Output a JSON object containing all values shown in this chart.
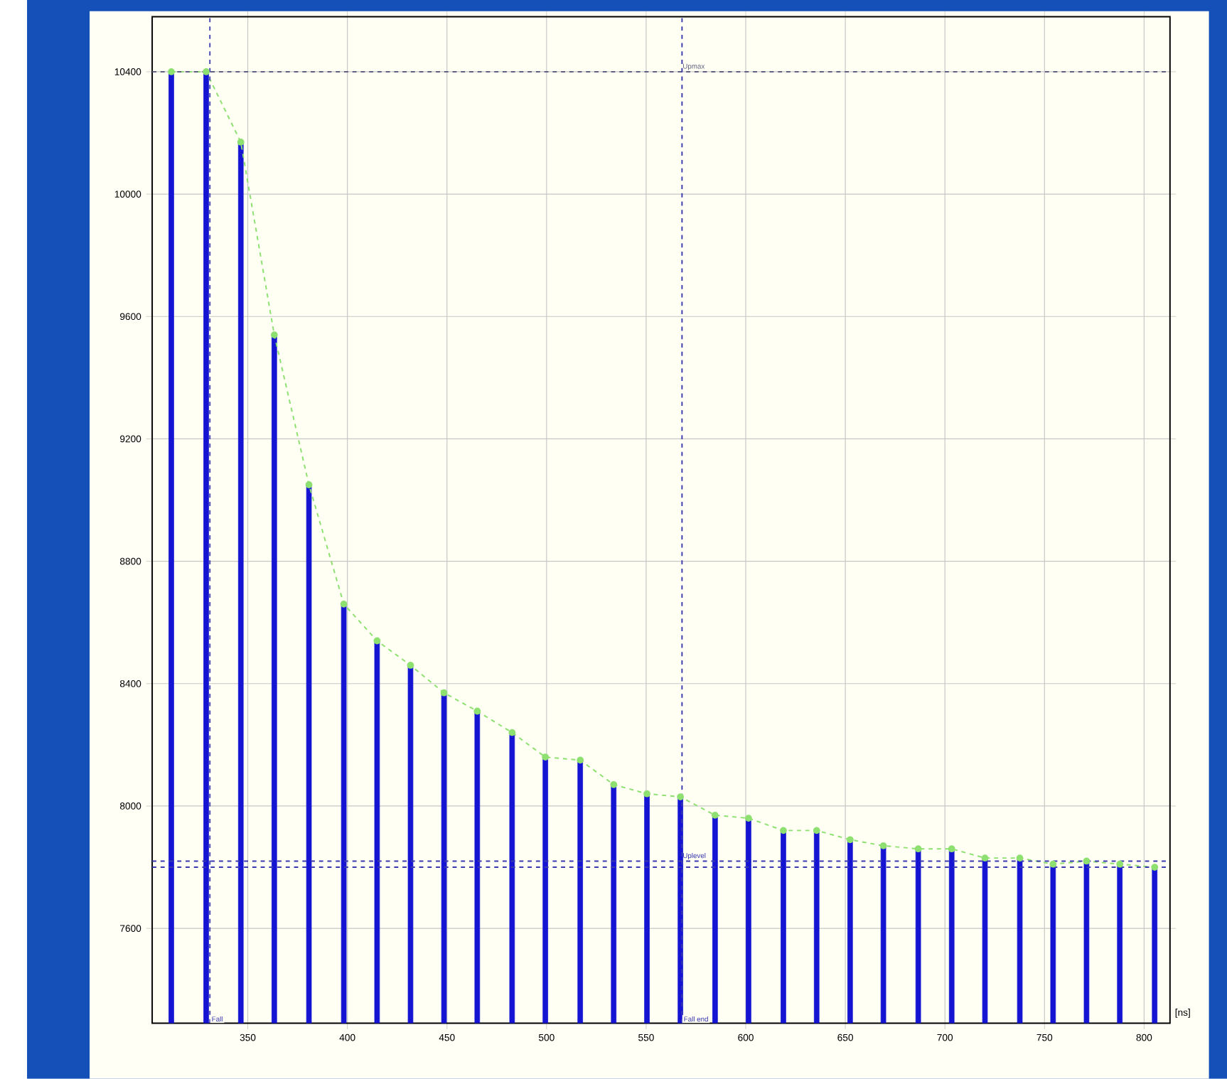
{
  "chart_data": {
    "type": "bar",
    "xlabel": "[ns]",
    "x": [
      311.6,
      329.1,
      346.5,
      363.3,
      380.7,
      398.2,
      414.9,
      431.7,
      448.5,
      465.2,
      482.7,
      499.4,
      516.9,
      533.7,
      550.4,
      567.2,
      584.6,
      601.4,
      618.9,
      635.6,
      652.4,
      669.1,
      686.6,
      703.4,
      720.1,
      737.6,
      754.3,
      771.1,
      787.8,
      805.3
    ],
    "series": [
      {
        "color": "#1414d2",
        "values": [
          10400,
          10400,
          10170,
          9540,
          9050,
          8660,
          8540,
          8460,
          8370,
          8310,
          8240,
          8160,
          8150,
          8070,
          8040,
          8030,
          7970,
          7960,
          7920,
          7920,
          7890,
          7870,
          7860,
          7860,
          7830,
          7830,
          7810,
          7820,
          7810,
          7800
        ]
      },
      {
        "type": "line",
        "color": "#8ee070",
        "marker": "circle",
        "line_style": "dashed",
        "values": [
          10400,
          10400,
          10170,
          9540,
          9050,
          8660,
          8540,
          8460,
          8370,
          8310,
          8240,
          8160,
          8150,
          8070,
          8040,
          8030,
          7970,
          7960,
          7920,
          7920,
          7890,
          7870,
          7860,
          7860,
          7830,
          7830,
          7810,
          7820,
          7810,
          7800
        ]
      }
    ],
    "xlim": [
      302,
      813
    ],
    "ylim": [
      7290,
      10580
    ],
    "xticks": [
      350,
      400,
      450,
      500,
      550,
      600,
      650,
      700,
      750,
      800
    ],
    "yticks": [
      7600,
      8000,
      8400,
      8800,
      9200,
      9600,
      10000,
      10400
    ],
    "grid": true,
    "ref_lines": [
      {
        "axis": "y",
        "value": 10400,
        "label": "Upmax",
        "color": "#606080",
        "line_style": "dashed"
      },
      {
        "axis": "y",
        "value": 7820,
        "label": "Uplevel",
        "color": "#3a3ab0",
        "line_style": "dashed"
      },
      {
        "axis": "y",
        "value": 7800,
        "color": "#3a3ab0",
        "line_style": "dashed"
      },
      {
        "axis": "x",
        "value": 331,
        "label": "Fall",
        "color": "#3a3ab0",
        "line_style": "dashed"
      },
      {
        "axis": "x",
        "value": 568,
        "label": "Fall end",
        "color": "#3a3ab0",
        "line_style": "dashed"
      }
    ]
  }
}
